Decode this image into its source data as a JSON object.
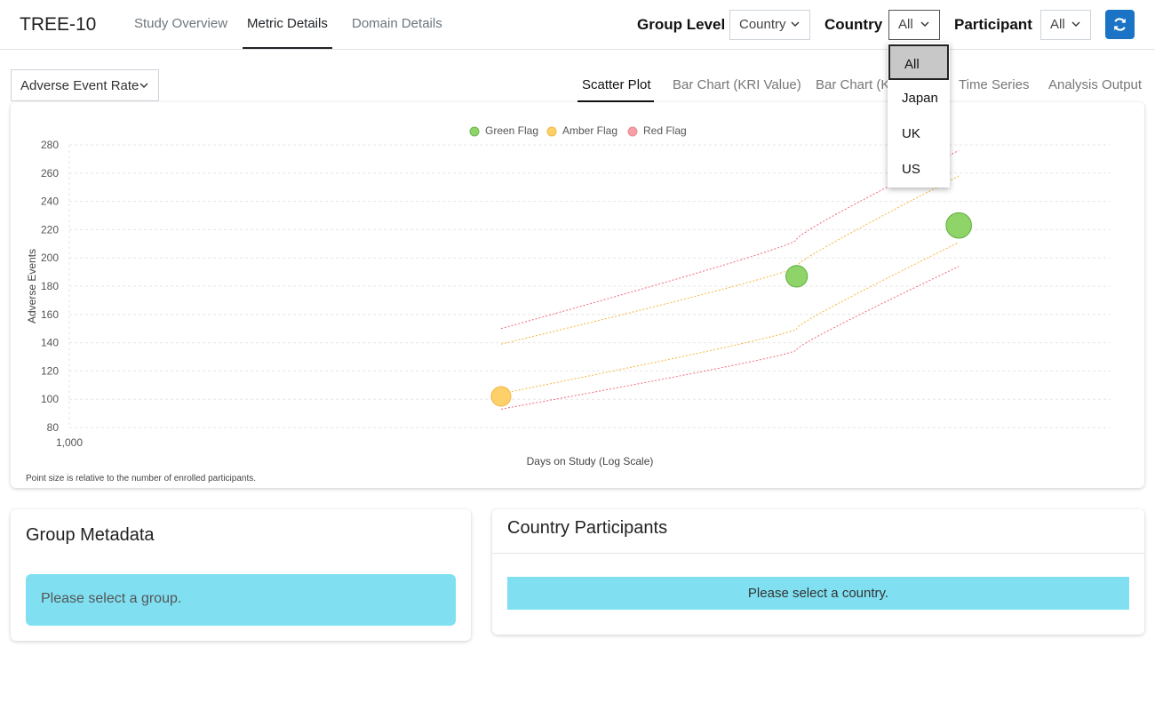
{
  "app": {
    "title": "TREE-10"
  },
  "nav": {
    "tabs": [
      "Study Overview",
      "Metric Details",
      "Domain Details"
    ],
    "active": 1
  },
  "controls": {
    "group_level_label": "Group Level",
    "group_level_value": "Country",
    "country_label": "Country",
    "country_value": "All",
    "participant_label": "Participant",
    "participant_value": "All",
    "refresh_icon": "refresh-icon",
    "accent": "#1a73c5"
  },
  "country_menu": {
    "options": [
      "All",
      "Japan",
      "UK",
      "US"
    ],
    "selected": "All"
  },
  "metric": {
    "value": "Adverse Event Rate"
  },
  "chart_tabs": {
    "tabs": [
      "Scatter Plot",
      "Bar Chart (KRI Value)",
      "Bar Chart (KRI",
      "Time Series",
      "Analysis Output"
    ],
    "active": 0
  },
  "chart_data": {
    "type": "scatter",
    "xlabel": "Days on Study (Log Scale)",
    "ylabel": "Adverse Events",
    "x_scale": "log",
    "x_tick_labels": [
      "1,000"
    ],
    "y_ticks": [
      80,
      100,
      120,
      140,
      160,
      180,
      200,
      220,
      240,
      260,
      280
    ],
    "ylim": [
      80,
      280
    ],
    "grid": true,
    "legend": {
      "placement": "top-center",
      "entries": [
        {
          "name": "Green Flag",
          "color": "#8fd468"
        },
        {
          "name": "Amber Flag",
          "color": "#fdd06a"
        },
        {
          "name": "Red Flag",
          "color": "#f4a0a6"
        }
      ]
    },
    "points": [
      {
        "days": 1450,
        "events": 102,
        "flag": "Amber Flag",
        "size": 1.0
      },
      {
        "days": 1870,
        "events": 187,
        "flag": "Green Flag",
        "size": 1.1
      },
      {
        "days": 2150,
        "events": 223,
        "flag": "Green Flag",
        "size": 1.3
      }
    ],
    "threshold_lines": [
      {
        "flag": "Red Flag",
        "color": "#f06a7a",
        "points": [
          [
            1450,
            150
          ],
          [
            1870,
            213
          ],
          [
            2150,
            276
          ]
        ]
      },
      {
        "flag": "Amber Flag",
        "color": "#f5b73c",
        "points": [
          [
            1450,
            139
          ],
          [
            1870,
            194
          ],
          [
            2150,
            258
          ]
        ]
      },
      {
        "flag": "Amber Flag",
        "color": "#f5b73c",
        "points": [
          [
            1450,
            104
          ],
          [
            1870,
            150
          ],
          [
            2150,
            211
          ]
        ]
      },
      {
        "flag": "Red Flag",
        "color": "#f06a7a",
        "points": [
          [
            1450,
            93
          ],
          [
            1870,
            135
          ],
          [
            2150,
            194
          ]
        ]
      }
    ],
    "footnote": "Point size is relative to the number of enrolled participants."
  },
  "group_metadata": {
    "title": "Group Metadata",
    "message": "Please select a group."
  },
  "country_participants": {
    "title": "Country Participants",
    "message": "Please select a country."
  }
}
